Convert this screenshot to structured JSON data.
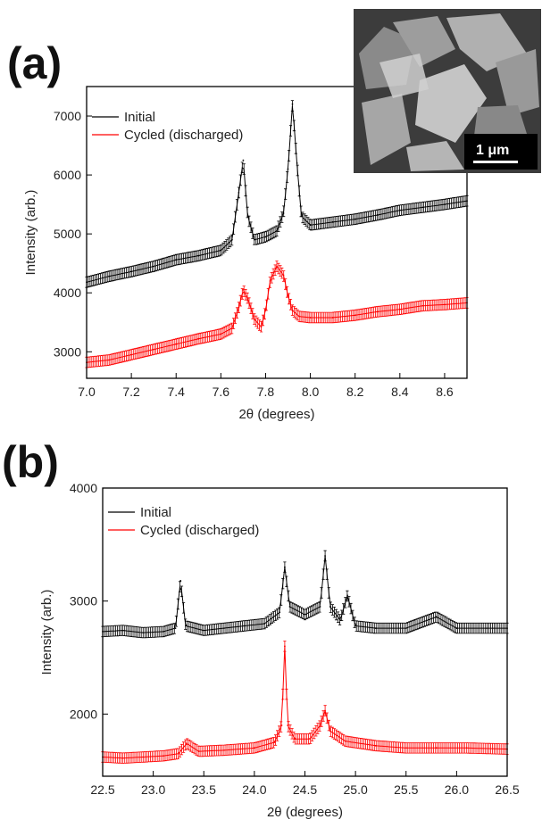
{
  "chart_data": [
    {
      "panel": "(a)",
      "type": "line",
      "xlabel": "2θ (degrees)",
      "ylabel": "Intensity (arb.)",
      "xlim": [
        7.0,
        8.7
      ],
      "ylim": [
        2550,
        7500
      ],
      "x_ticks": [
        "7.0",
        "7.2",
        "7.4",
        "7.6",
        "7.8",
        "8.0",
        "8.2",
        "8.4",
        "8.6"
      ],
      "y_ticks": [
        "3000",
        "4000",
        "5000",
        "6000",
        "7000"
      ],
      "legend_position": "top-left",
      "series": [
        {
          "name": "Initial",
          "color": "#000000",
          "error_bars": true,
          "x": [
            7.0,
            7.1,
            7.2,
            7.3,
            7.4,
            7.5,
            7.6,
            7.65,
            7.68,
            7.7,
            7.72,
            7.75,
            7.8,
            7.85,
            7.88,
            7.9,
            7.92,
            7.94,
            7.96,
            8.0,
            8.1,
            8.2,
            8.3,
            8.4,
            8.5,
            8.6,
            8.7
          ],
          "y": [
            4180,
            4280,
            4360,
            4450,
            4560,
            4630,
            4720,
            4900,
            5700,
            6250,
            5300,
            4900,
            4950,
            5050,
            5350,
            6100,
            7200,
            6200,
            5300,
            5150,
            5200,
            5250,
            5320,
            5400,
            5450,
            5500,
            5560
          ]
        },
        {
          "name": "Cycled (discharged)",
          "color": "#ff0000",
          "error_bars": true,
          "x": [
            7.0,
            7.1,
            7.2,
            7.3,
            7.4,
            7.5,
            7.6,
            7.65,
            7.68,
            7.7,
            7.72,
            7.75,
            7.78,
            7.8,
            7.82,
            7.85,
            7.88,
            7.9,
            7.92,
            7.95,
            8.0,
            8.1,
            8.2,
            8.3,
            8.4,
            8.5,
            8.6,
            8.7
          ],
          "y": [
            2820,
            2860,
            2950,
            3040,
            3130,
            3220,
            3300,
            3400,
            3750,
            4050,
            3900,
            3550,
            3420,
            3700,
            4200,
            4450,
            4300,
            3950,
            3700,
            3600,
            3580,
            3580,
            3620,
            3680,
            3720,
            3780,
            3800,
            3830
          ]
        }
      ]
    },
    {
      "panel": "(b)",
      "type": "line",
      "xlabel": "2θ (degrees)",
      "ylabel": "Intensity (arb.)",
      "xlim": [
        22.5,
        26.5
      ],
      "ylim": [
        1450,
        4000
      ],
      "x_ticks": [
        "22.5",
        "23.0",
        "23.5",
        "24.0",
        "24.5",
        "25.0",
        "25.5",
        "26.0",
        "26.5"
      ],
      "y_ticks": [
        "2000",
        "3000",
        "4000"
      ],
      "legend_position": "top-left",
      "series": [
        {
          "name": "Initial",
          "color": "#000000",
          "error_bars": true,
          "x": [
            22.5,
            22.7,
            22.9,
            23.1,
            23.22,
            23.27,
            23.32,
            23.5,
            23.7,
            23.9,
            24.1,
            24.25,
            24.3,
            24.35,
            24.5,
            24.65,
            24.7,
            24.75,
            24.85,
            24.92,
            25.0,
            25.2,
            25.5,
            25.8,
            26.0,
            26.3,
            26.5
          ],
          "y": [
            2730,
            2740,
            2720,
            2730,
            2760,
            3180,
            2780,
            2740,
            2760,
            2780,
            2800,
            2900,
            3300,
            2950,
            2880,
            2950,
            3400,
            2950,
            2830,
            3050,
            2780,
            2760,
            2760,
            2860,
            2760,
            2760,
            2760
          ]
        },
        {
          "name": "Cycled (discharged)",
          "color": "#ff0000",
          "error_bars": true,
          "x": [
            22.5,
            22.7,
            22.9,
            23.1,
            23.25,
            23.33,
            23.45,
            23.7,
            24.0,
            24.2,
            24.27,
            24.3,
            24.33,
            24.4,
            24.55,
            24.65,
            24.7,
            24.75,
            24.9,
            25.2,
            25.5,
            25.8,
            26.1,
            26.5
          ],
          "y": [
            1620,
            1610,
            1620,
            1630,
            1650,
            1740,
            1670,
            1680,
            1700,
            1750,
            1900,
            2600,
            1900,
            1780,
            1780,
            1900,
            2030,
            1850,
            1760,
            1720,
            1700,
            1700,
            1700,
            1690
          ]
        }
      ]
    }
  ],
  "panels": {
    "a": {
      "label": "(a)",
      "inset_scale_bar": "1 μm"
    },
    "b": {
      "label": "(b)"
    }
  }
}
